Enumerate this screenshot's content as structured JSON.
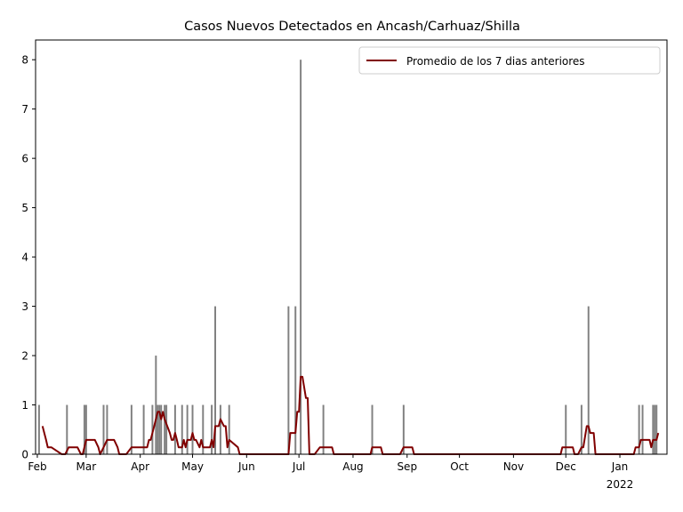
{
  "chart_data": {
    "type": "bar",
    "title": "Casos Nuevos Detectados en Ancash/Carhuaz/Shilla",
    "xlabel": "",
    "ylabel": "",
    "x_range": [
      "2021-01-31",
      "2022-01-28"
    ],
    "ylim": [
      0,
      8.4
    ],
    "y_ticks": [
      0,
      1,
      2,
      3,
      4,
      5,
      6,
      7,
      8
    ],
    "x_ticks": [
      {
        "date": "2021-02-01",
        "label": "Feb",
        "sublabel": ""
      },
      {
        "date": "2021-03-01",
        "label": "Mar",
        "sublabel": ""
      },
      {
        "date": "2021-04-01",
        "label": "Apr",
        "sublabel": ""
      },
      {
        "date": "2021-05-01",
        "label": "May",
        "sublabel": ""
      },
      {
        "date": "2021-06-01",
        "label": "Jun",
        "sublabel": ""
      },
      {
        "date": "2021-07-01",
        "label": "Jul",
        "sublabel": ""
      },
      {
        "date": "2021-08-01",
        "label": "Aug",
        "sublabel": ""
      },
      {
        "date": "2021-09-01",
        "label": "Sep",
        "sublabel": ""
      },
      {
        "date": "2021-10-01",
        "label": "Oct",
        "sublabel": ""
      },
      {
        "date": "2021-11-01",
        "label": "Nov",
        "sublabel": ""
      },
      {
        "date": "2021-12-01",
        "label": "Dec",
        "sublabel": ""
      },
      {
        "date": "2022-01-01",
        "label": "Jan",
        "sublabel": "2022"
      }
    ],
    "grid": false,
    "legend_position": "top-right",
    "bar_color": "#808080",
    "line_color": "#800000",
    "daily_cases": [
      {
        "date": "2021-02-02",
        "value": 1
      },
      {
        "date": "2021-02-18",
        "value": 1
      },
      {
        "date": "2021-02-28",
        "value": 1
      },
      {
        "date": "2021-03-01",
        "value": 1
      },
      {
        "date": "2021-03-11",
        "value": 1
      },
      {
        "date": "2021-03-13",
        "value": 1
      },
      {
        "date": "2021-03-27",
        "value": 1
      },
      {
        "date": "2021-04-03",
        "value": 1
      },
      {
        "date": "2021-04-08",
        "value": 1
      },
      {
        "date": "2021-04-10",
        "value": 2
      },
      {
        "date": "2021-04-11",
        "value": 1
      },
      {
        "date": "2021-04-12",
        "value": 1
      },
      {
        "date": "2021-04-13",
        "value": 1
      },
      {
        "date": "2021-04-15",
        "value": 1
      },
      {
        "date": "2021-04-16",
        "value": 1
      },
      {
        "date": "2021-04-21",
        "value": 1
      },
      {
        "date": "2021-04-25",
        "value": 1
      },
      {
        "date": "2021-04-28",
        "value": 1
      },
      {
        "date": "2021-05-01",
        "value": 1
      },
      {
        "date": "2021-05-07",
        "value": 1
      },
      {
        "date": "2021-05-12",
        "value": 1
      },
      {
        "date": "2021-05-14",
        "value": 3
      },
      {
        "date": "2021-05-17",
        "value": 1
      },
      {
        "date": "2021-05-22",
        "value": 1
      },
      {
        "date": "2021-06-25",
        "value": 3
      },
      {
        "date": "2021-06-29",
        "value": 3
      },
      {
        "date": "2021-07-02",
        "value": 8
      },
      {
        "date": "2021-07-15",
        "value": 1
      },
      {
        "date": "2021-08-12",
        "value": 1
      },
      {
        "date": "2021-08-30",
        "value": 1
      },
      {
        "date": "2021-12-01",
        "value": 1
      },
      {
        "date": "2021-12-10",
        "value": 1
      },
      {
        "date": "2021-12-14",
        "value": 3
      },
      {
        "date": "2022-01-12",
        "value": 1
      },
      {
        "date": "2022-01-14",
        "value": 1
      },
      {
        "date": "2022-01-20",
        "value": 1
      },
      {
        "date": "2022-01-21",
        "value": 1
      },
      {
        "date": "2022-01-22",
        "value": 1
      }
    ],
    "series": [
      {
        "name": "Promedio de los 7 dias anteriores",
        "x": [
          "2021-02-04",
          "2021-02-06",
          "2021-02-07",
          "2021-02-08",
          "2021-02-09",
          "2021-02-15",
          "2021-02-17",
          "2021-02-19",
          "2021-02-24",
          "2021-02-26",
          "2021-02-27",
          "2021-03-01",
          "2021-03-06",
          "2021-03-08",
          "2021-03-09",
          "2021-03-11",
          "2021-03-13",
          "2021-03-17",
          "2021-03-19",
          "2021-03-20",
          "2021-03-24",
          "2021-03-27",
          "2021-04-04",
          "2021-04-05",
          "2021-04-06",
          "2021-04-07",
          "2021-04-09",
          "2021-04-10",
          "2021-04-11",
          "2021-04-12",
          "2021-04-13",
          "2021-04-14",
          "2021-04-15",
          "2021-04-18",
          "2021-04-19",
          "2021-04-20",
          "2021-04-21",
          "2021-04-22",
          "2021-04-23",
          "2021-04-24",
          "2021-04-25",
          "2021-04-26",
          "2021-04-27",
          "2021-04-28",
          "2021-04-30",
          "2021-05-01",
          "2021-05-02",
          "2021-05-03",
          "2021-05-05",
          "2021-05-06",
          "2021-05-07",
          "2021-05-08",
          "2021-05-09",
          "2021-05-11",
          "2021-05-12",
          "2021-05-13",
          "2021-05-14",
          "2021-05-15",
          "2021-05-16",
          "2021-05-17",
          "2021-05-19",
          "2021-05-20",
          "2021-05-21",
          "2021-05-22",
          "2021-05-27",
          "2021-05-28",
          "2021-06-25",
          "2021-06-26",
          "2021-06-29",
          "2021-06-30",
          "2021-07-01",
          "2021-07-02",
          "2021-07-03",
          "2021-07-05",
          "2021-07-06",
          "2021-07-07",
          "2021-07-08",
          "2021-07-10",
          "2021-07-13",
          "2021-07-14",
          "2021-07-20",
          "2021-07-21",
          "2021-08-11",
          "2021-08-12",
          "2021-08-17",
          "2021-08-18",
          "2021-08-28",
          "2021-08-30",
          "2021-09-04",
          "2021-09-05",
          "2021-11-28",
          "2021-11-29",
          "2021-12-05",
          "2021-12-06",
          "2021-12-08",
          "2021-12-10",
          "2021-12-11",
          "2021-12-13",
          "2021-12-14",
          "2021-12-15",
          "2021-12-17",
          "2021-12-18",
          "2021-12-20",
          "2021-12-21",
          "2022-01-09",
          "2022-01-10",
          "2022-01-12",
          "2022-01-13",
          "2022-01-14",
          "2022-01-18",
          "2022-01-19",
          "2022-01-20",
          "2022-01-21",
          "2022-01-22",
          "2022-01-23"
        ],
        "y": [
          0.57,
          0.29,
          0.14,
          0.14,
          0.14,
          0.0,
          0.0,
          0.14,
          0.14,
          0.0,
          0.0,
          0.29,
          0.29,
          0.14,
          0.0,
          0.14,
          0.29,
          0.29,
          0.14,
          0.0,
          0.0,
          0.14,
          0.14,
          0.14,
          0.29,
          0.29,
          0.57,
          0.71,
          0.86,
          0.86,
          0.71,
          0.86,
          0.71,
          0.43,
          0.29,
          0.29,
          0.43,
          0.29,
          0.14,
          0.14,
          0.14,
          0.29,
          0.14,
          0.29,
          0.29,
          0.43,
          0.29,
          0.29,
          0.14,
          0.29,
          0.14,
          0.14,
          0.14,
          0.14,
          0.29,
          0.14,
          0.57,
          0.57,
          0.57,
          0.71,
          0.57,
          0.57,
          0.14,
          0.29,
          0.14,
          0.0,
          0.0,
          0.43,
          0.43,
          0.86,
          0.86,
          1.57,
          1.57,
          1.14,
          1.14,
          0.0,
          0.0,
          0.0,
          0.14,
          0.14,
          0.14,
          0.0,
          0.0,
          0.14,
          0.14,
          0.0,
          0.0,
          0.14,
          0.14,
          0.0,
          0.0,
          0.14,
          0.14,
          0.0,
          0.0,
          0.14,
          0.14,
          0.57,
          0.57,
          0.43,
          0.43,
          0.0,
          0.0,
          0.0,
          0.0,
          0.14,
          0.14,
          0.29,
          0.29,
          0.29,
          0.14,
          0.29,
          0.29,
          0.29,
          0.43
        ]
      }
    ]
  }
}
